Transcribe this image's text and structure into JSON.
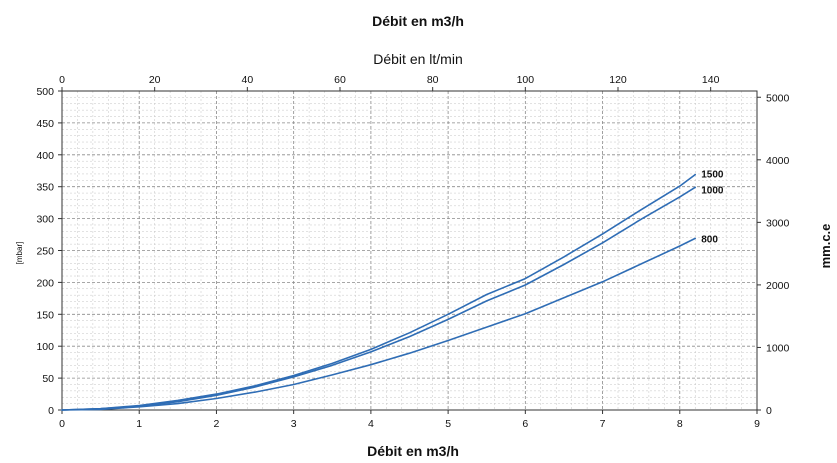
{
  "chart_data": {
    "type": "line",
    "title": "Débit en m3/h",
    "top_axis": {
      "label": "Débit en lt/min",
      "range": [
        0,
        150
      ],
      "ticks": [
        0,
        20,
        40,
        60,
        80,
        100,
        120,
        140
      ]
    },
    "xlabel": "Débit en m3/h",
    "xlim": [
      0,
      9
    ],
    "x_ticks": [
      0,
      1,
      2,
      3,
      4,
      5,
      6,
      7,
      8,
      9
    ],
    "ylabel": "[mbar]",
    "ylim": [
      0,
      500
    ],
    "y_ticks": [
      0,
      50,
      100,
      150,
      200,
      250,
      300,
      350,
      400,
      450,
      500
    ],
    "right_axis": {
      "label": "mm.c.e",
      "range": [
        0,
        5100
      ],
      "ticks": [
        0,
        1000,
        2000,
        3000,
        4000,
        5000
      ]
    },
    "grid": true,
    "line_color": "#2f6db5",
    "series": [
      {
        "name": "1500",
        "x": [
          0,
          0.5,
          1,
          1.5,
          2,
          2.5,
          3,
          3.5,
          4,
          4.5,
          5,
          5.5,
          6,
          6.5,
          7,
          7.5,
          8,
          8.2
        ],
        "values": [
          0,
          2,
          7,
          15,
          25,
          38,
          54,
          73,
          95,
          121,
          150,
          181,
          206,
          240,
          276,
          314,
          351,
          369
        ]
      },
      {
        "name": "1000",
        "x": [
          0,
          0.5,
          1,
          1.5,
          2,
          2.5,
          3,
          3.5,
          4,
          4.5,
          5,
          5.5,
          6,
          6.5,
          7,
          7.5,
          8,
          8.2
        ],
        "values": [
          0,
          2,
          6,
          13,
          23,
          36,
          52,
          70,
          91,
          115,
          142,
          171,
          196,
          228,
          262,
          299,
          334,
          349
        ]
      },
      {
        "name": "800",
        "x": [
          0,
          0.5,
          1,
          1.5,
          2,
          2.5,
          3,
          3.5,
          4,
          4.5,
          5,
          5.5,
          6,
          6.5,
          7,
          7.5,
          8,
          8.2
        ],
        "values": [
          0,
          1,
          5,
          10,
          18,
          28,
          40,
          55,
          71,
          89,
          109,
          130,
          151,
          176,
          201,
          229,
          257,
          269
        ]
      }
    ]
  }
}
